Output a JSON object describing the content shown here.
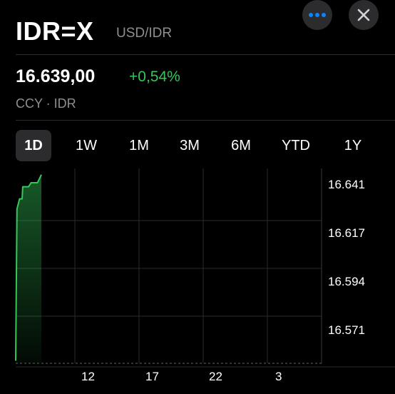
{
  "header": {
    "symbol": "IDR=X",
    "pair": "USD/IDR",
    "more_icon": "ellipsis-icon",
    "close_icon": "close-icon"
  },
  "quote": {
    "price": "16.639,00",
    "change": "+0,54%",
    "subtitle": "CCY · IDR"
  },
  "ranges": [
    {
      "label": "1D",
      "active": true
    },
    {
      "label": "1W",
      "active": false
    },
    {
      "label": "1M",
      "active": false
    },
    {
      "label": "3M",
      "active": false
    },
    {
      "label": "6M",
      "active": false
    },
    {
      "label": "YTD",
      "active": false
    },
    {
      "label": "1Y",
      "active": false
    }
  ],
  "colors": {
    "background": "#000000",
    "positive": "#34c759",
    "accent": "#0a84ff",
    "secondary_text": "#8e8e93"
  },
  "chart_data": {
    "type": "area",
    "y_ticks": [
      "16.641",
      "16.617",
      "16.594",
      "16.571"
    ],
    "x_ticks": [
      "12",
      "17",
      "22",
      "3"
    ],
    "grid": true,
    "x": [
      0,
      0.1,
      0.3,
      0.5,
      0.55,
      1.0,
      1.2,
      1.5,
      1.7,
      2.0
    ],
    "values": [
      16.553,
      16.628,
      16.633,
      16.633,
      16.639,
      16.639,
      16.641,
      16.641,
      16.641,
      16.645
    ]
  }
}
